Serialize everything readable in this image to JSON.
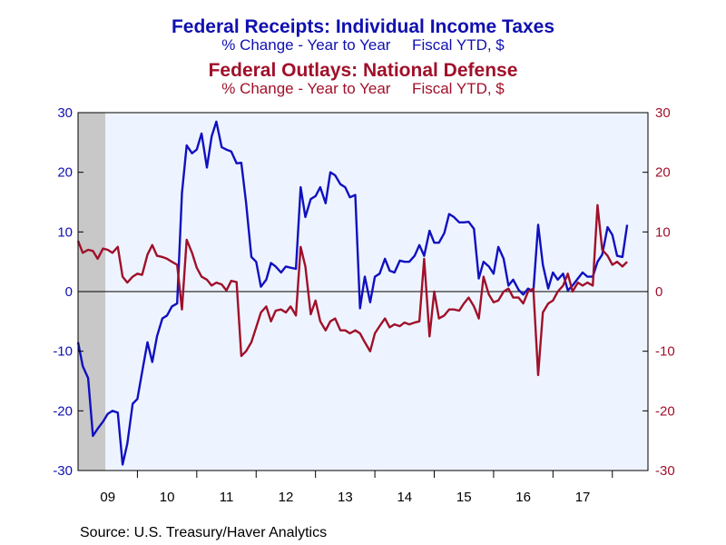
{
  "chart_data": {
    "type": "line",
    "titles": [
      {
        "title": "Federal Receipts: Individual Income Taxes",
        "subtitle": "% Change - Year to Year     Fiscal YTD, $",
        "color": "#1010b0"
      },
      {
        "title": "Federal Outlays: National Defense",
        "subtitle": "% Change - Year to Year     Fiscal YTD, $",
        "color": "#a0102a"
      }
    ],
    "x_tick_labels": [
      "09",
      "10",
      "11",
      "12",
      "13",
      "14",
      "15",
      "16",
      "17"
    ],
    "x_range": [
      2009.0,
      2018.6
    ],
    "left_axis": {
      "ylim": [
        -30,
        30
      ],
      "ticks": [
        30,
        20,
        10,
        0,
        -10,
        -20,
        -30
      ],
      "color": "#1010b0"
    },
    "right_axis": {
      "ylim": [
        -30,
        30
      ],
      "ticks": [
        30,
        20,
        10,
        0,
        -10,
        -20,
        -30
      ],
      "color": "#a0102a"
    },
    "recession_shading": [
      [
        2009.0,
        2009.46
      ]
    ],
    "zero_line": true,
    "series": [
      {
        "axis": "left",
        "color": "#1010c0",
        "points": [
          [
            2009.0,
            -8.5
          ],
          [
            2009.08,
            -12.5
          ],
          [
            2009.17,
            -14.5
          ],
          [
            2009.25,
            -24.2
          ],
          [
            2009.33,
            -23.0
          ],
          [
            2009.42,
            -21.8
          ],
          [
            2009.5,
            -20.5
          ],
          [
            2009.58,
            -20.0
          ],
          [
            2009.67,
            -20.3
          ],
          [
            2009.75,
            -29.0
          ],
          [
            2009.83,
            -25.5
          ],
          [
            2009.92,
            -18.8
          ],
          [
            2010.0,
            -18.0
          ],
          [
            2010.08,
            -13.5
          ],
          [
            2010.17,
            -8.5
          ],
          [
            2010.25,
            -11.8
          ],
          [
            2010.33,
            -7.5
          ],
          [
            2010.42,
            -4.5
          ],
          [
            2010.5,
            -4.0
          ],
          [
            2010.58,
            -2.5
          ],
          [
            2010.67,
            -2.0
          ],
          [
            2010.75,
            16.5
          ],
          [
            2010.83,
            24.5
          ],
          [
            2010.92,
            23.2
          ],
          [
            2011.0,
            23.8
          ],
          [
            2011.08,
            26.5
          ],
          [
            2011.17,
            20.8
          ],
          [
            2011.25,
            26.0
          ],
          [
            2011.33,
            28.5
          ],
          [
            2011.42,
            24.2
          ],
          [
            2011.5,
            23.8
          ],
          [
            2011.58,
            23.5
          ],
          [
            2011.67,
            21.5
          ],
          [
            2011.75,
            21.6
          ],
          [
            2011.83,
            15.0
          ],
          [
            2011.92,
            5.8
          ],
          [
            2012.0,
            5.0
          ],
          [
            2012.08,
            0.8
          ],
          [
            2012.17,
            2.0
          ],
          [
            2012.25,
            4.8
          ],
          [
            2012.33,
            4.2
          ],
          [
            2012.42,
            3.2
          ],
          [
            2012.5,
            4.2
          ],
          [
            2012.58,
            4.0
          ],
          [
            2012.67,
            3.8
          ],
          [
            2012.75,
            17.5
          ],
          [
            2012.83,
            12.5
          ],
          [
            2012.92,
            15.5
          ],
          [
            2013.0,
            16.0
          ],
          [
            2013.08,
            17.5
          ],
          [
            2013.17,
            14.8
          ],
          [
            2013.25,
            20.0
          ],
          [
            2013.33,
            19.5
          ],
          [
            2013.42,
            18.0
          ],
          [
            2013.5,
            17.5
          ],
          [
            2013.58,
            15.8
          ],
          [
            2013.67,
            16.2
          ],
          [
            2013.75,
            -2.8
          ],
          [
            2013.83,
            2.5
          ],
          [
            2013.92,
            -1.8
          ],
          [
            2014.0,
            2.5
          ],
          [
            2014.08,
            3.0
          ],
          [
            2014.17,
            5.5
          ],
          [
            2014.25,
            3.5
          ],
          [
            2014.33,
            3.2
          ],
          [
            2014.42,
            5.2
          ],
          [
            2014.5,
            5.0
          ],
          [
            2014.58,
            5.0
          ],
          [
            2014.67,
            6.0
          ],
          [
            2014.75,
            7.8
          ],
          [
            2014.83,
            6.0
          ],
          [
            2014.92,
            10.2
          ],
          [
            2015.0,
            8.2
          ],
          [
            2015.08,
            8.2
          ],
          [
            2015.17,
            9.8
          ],
          [
            2015.25,
            13.0
          ],
          [
            2015.33,
            12.5
          ],
          [
            2015.42,
            11.6
          ],
          [
            2015.5,
            11.6
          ],
          [
            2015.58,
            11.7
          ],
          [
            2015.67,
            10.5
          ],
          [
            2015.75,
            2.2
          ],
          [
            2015.83,
            5.0
          ],
          [
            2015.92,
            4.2
          ],
          [
            2016.0,
            3.0
          ],
          [
            2016.08,
            7.5
          ],
          [
            2016.17,
            5.5
          ],
          [
            2016.25,
            1.0
          ],
          [
            2016.33,
            2.0
          ],
          [
            2016.42,
            0.3
          ],
          [
            2016.5,
            -0.5
          ],
          [
            2016.58,
            0.5
          ],
          [
            2016.67,
            0.0
          ],
          [
            2016.75,
            11.2
          ],
          [
            2016.83,
            4.5
          ],
          [
            2016.92,
            0.5
          ],
          [
            2017.0,
            3.2
          ],
          [
            2017.08,
            2.0
          ],
          [
            2017.17,
            3.0
          ],
          [
            2017.25,
            0.2
          ],
          [
            2017.33,
            1.0
          ],
          [
            2017.42,
            2.2
          ],
          [
            2017.5,
            3.2
          ],
          [
            2017.58,
            2.5
          ],
          [
            2017.67,
            2.5
          ],
          [
            2017.75,
            5.0
          ],
          [
            2017.83,
            6.2
          ],
          [
            2017.92,
            10.8
          ],
          [
            2018.0,
            9.5
          ],
          [
            2018.08,
            6.0
          ],
          [
            2018.17,
            5.8
          ],
          [
            2018.25,
            11.2
          ]
        ]
      },
      {
        "axis": "right",
        "color": "#a0102a",
        "points": [
          [
            2009.0,
            8.5
          ],
          [
            2009.08,
            6.5
          ],
          [
            2009.17,
            7.0
          ],
          [
            2009.25,
            6.8
          ],
          [
            2009.33,
            5.5
          ],
          [
            2009.42,
            7.2
          ],
          [
            2009.5,
            7.0
          ],
          [
            2009.58,
            6.5
          ],
          [
            2009.67,
            7.5
          ],
          [
            2009.75,
            2.5
          ],
          [
            2009.83,
            1.5
          ],
          [
            2009.92,
            2.5
          ],
          [
            2010.0,
            3.0
          ],
          [
            2010.08,
            2.8
          ],
          [
            2010.17,
            6.2
          ],
          [
            2010.25,
            7.8
          ],
          [
            2010.33,
            6.0
          ],
          [
            2010.42,
            5.8
          ],
          [
            2010.5,
            5.5
          ],
          [
            2010.58,
            5.0
          ],
          [
            2010.67,
            4.5
          ],
          [
            2010.75,
            -3.0
          ],
          [
            2010.83,
            8.7
          ],
          [
            2010.92,
            6.5
          ],
          [
            2011.0,
            4.0
          ],
          [
            2011.08,
            2.5
          ],
          [
            2011.17,
            2.0
          ],
          [
            2011.25,
            1.0
          ],
          [
            2011.33,
            1.5
          ],
          [
            2011.42,
            1.2
          ],
          [
            2011.5,
            0.2
          ],
          [
            2011.58,
            1.8
          ],
          [
            2011.67,
            1.6
          ],
          [
            2011.75,
            -10.8
          ],
          [
            2011.83,
            -10.0
          ],
          [
            2011.92,
            -8.5
          ],
          [
            2012.0,
            -6.0
          ],
          [
            2012.08,
            -3.5
          ],
          [
            2012.17,
            -2.5
          ],
          [
            2012.25,
            -5.0
          ],
          [
            2012.33,
            -3.2
          ],
          [
            2012.42,
            -3.0
          ],
          [
            2012.5,
            -3.5
          ],
          [
            2012.58,
            -2.5
          ],
          [
            2012.67,
            -4.0
          ],
          [
            2012.75,
            7.5
          ],
          [
            2012.83,
            4.2
          ],
          [
            2012.92,
            -3.8
          ],
          [
            2013.0,
            -1.5
          ],
          [
            2013.08,
            -5.0
          ],
          [
            2013.17,
            -6.5
          ],
          [
            2013.25,
            -5.0
          ],
          [
            2013.33,
            -4.5
          ],
          [
            2013.42,
            -6.5
          ],
          [
            2013.5,
            -6.5
          ],
          [
            2013.58,
            -7.0
          ],
          [
            2013.67,
            -6.5
          ],
          [
            2013.75,
            -7.0
          ],
          [
            2013.83,
            -8.5
          ],
          [
            2013.92,
            -10.0
          ],
          [
            2014.0,
            -7.0
          ],
          [
            2014.08,
            -5.8
          ],
          [
            2014.17,
            -4.5
          ],
          [
            2014.25,
            -6.0
          ],
          [
            2014.33,
            -5.5
          ],
          [
            2014.42,
            -5.8
          ],
          [
            2014.5,
            -5.2
          ],
          [
            2014.58,
            -5.5
          ],
          [
            2014.67,
            -5.2
          ],
          [
            2014.75,
            -5.0
          ],
          [
            2014.83,
            5.5
          ],
          [
            2014.92,
            -7.5
          ],
          [
            2015.0,
            0.0
          ],
          [
            2015.08,
            -4.5
          ],
          [
            2015.17,
            -4.0
          ],
          [
            2015.25,
            -3.0
          ],
          [
            2015.33,
            -3.0
          ],
          [
            2015.42,
            -3.2
          ],
          [
            2015.5,
            -2.0
          ],
          [
            2015.58,
            -1.0
          ],
          [
            2015.67,
            -2.5
          ],
          [
            2015.75,
            -4.5
          ],
          [
            2015.83,
            2.5
          ],
          [
            2015.92,
            -0.5
          ],
          [
            2016.0,
            -1.8
          ],
          [
            2016.08,
            -1.5
          ],
          [
            2016.17,
            0.0
          ],
          [
            2016.25,
            0.5
          ],
          [
            2016.33,
            -1.0
          ],
          [
            2016.42,
            -1.0
          ],
          [
            2016.5,
            -2.0
          ],
          [
            2016.58,
            0.0
          ],
          [
            2016.67,
            0.5
          ],
          [
            2016.75,
            -14.0
          ],
          [
            2016.83,
            -3.5
          ],
          [
            2016.92,
            -2.0
          ],
          [
            2017.0,
            -1.5
          ],
          [
            2017.08,
            0.0
          ],
          [
            2017.17,
            1.0
          ],
          [
            2017.25,
            3.0
          ],
          [
            2017.33,
            0.0
          ],
          [
            2017.42,
            1.5
          ],
          [
            2017.5,
            1.0
          ],
          [
            2017.58,
            1.5
          ],
          [
            2017.67,
            1.0
          ],
          [
            2017.75,
            14.5
          ],
          [
            2017.83,
            7.0
          ],
          [
            2017.92,
            6.0
          ],
          [
            2018.0,
            4.5
          ],
          [
            2018.08,
            5.0
          ],
          [
            2018.17,
            4.2
          ],
          [
            2018.25,
            5.0
          ]
        ]
      }
    ]
  },
  "footer": {
    "source": "Source:  U.S. Treasury/Haver Analytics"
  }
}
